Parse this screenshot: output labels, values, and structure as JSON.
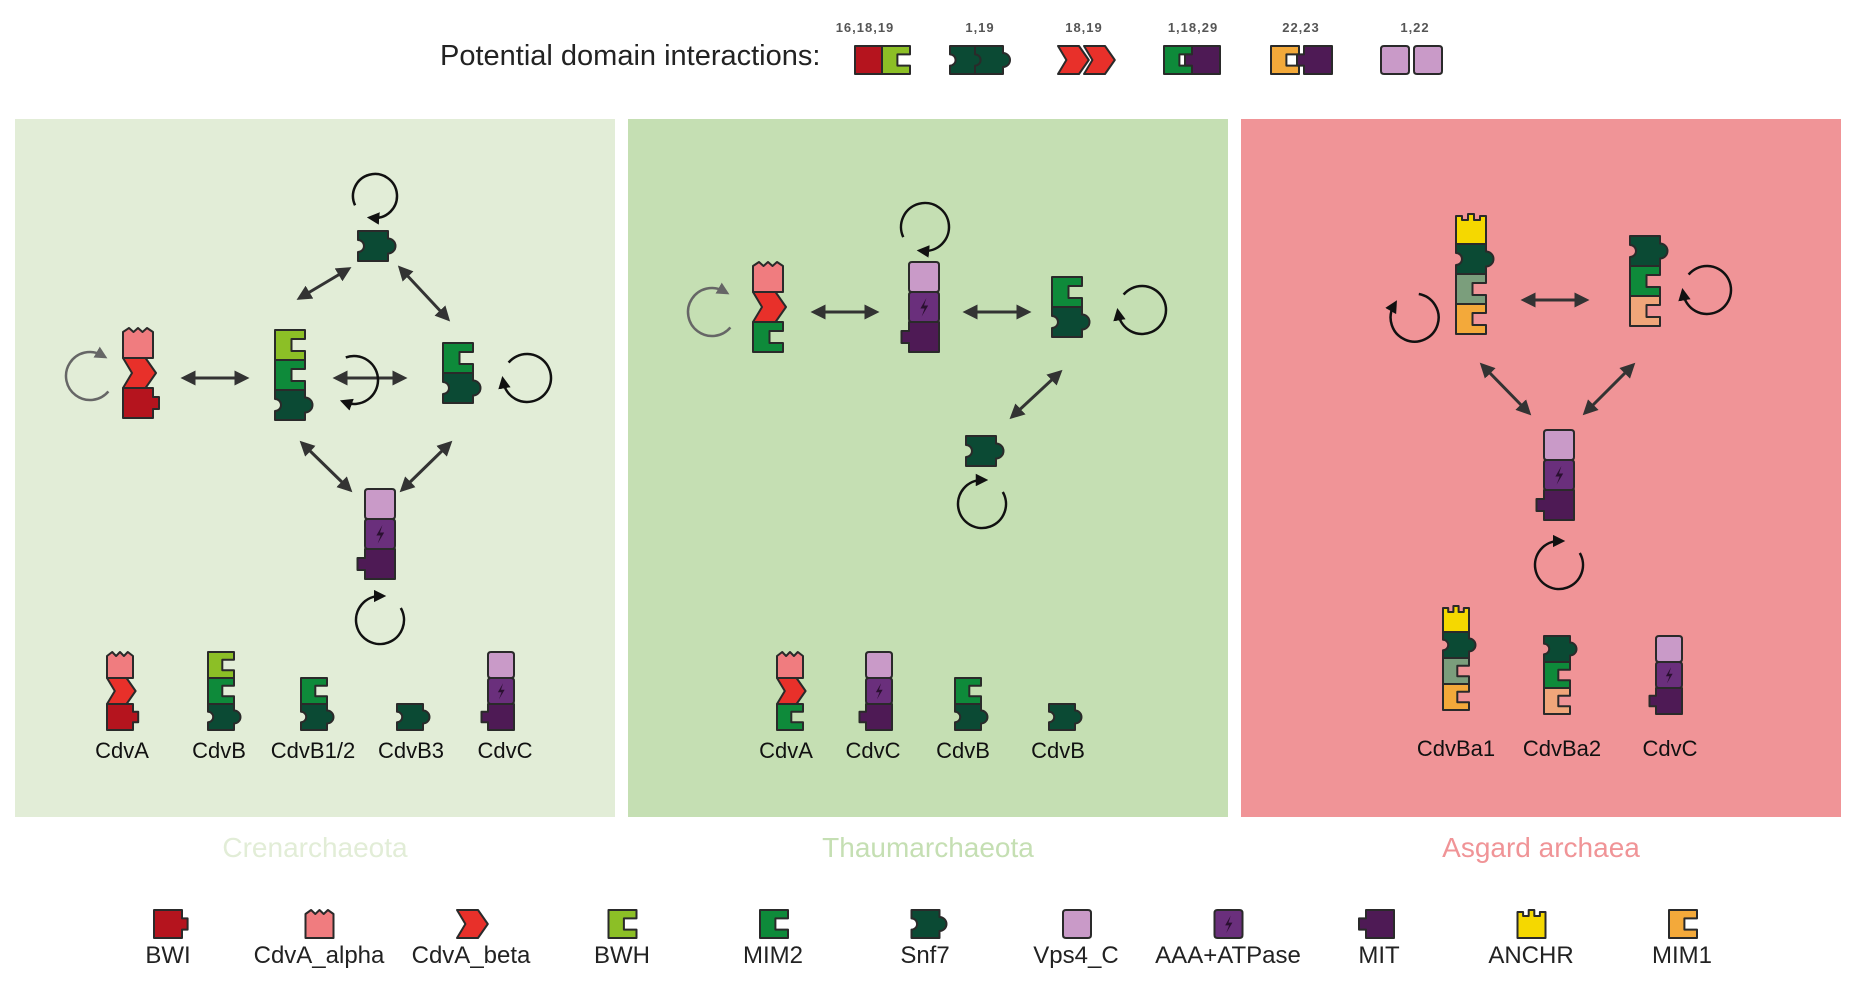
{
  "header": {
    "label": "Potential domain interactions:",
    "references": [
      "16,18,19",
      "1,19",
      "18,19",
      "1,18,29",
      "22,23",
      "1,22"
    ]
  },
  "panels": [
    {
      "name": "Crenarchaeota",
      "bg": "#e2edd7",
      "text_color": "#e2edd7",
      "proteins": [
        "CdvA",
        "CdvB",
        "CdvB1/2",
        "CdvB3",
        "CdvC"
      ]
    },
    {
      "name": "Thaumarchaeota",
      "bg": "#c5dfb3",
      "text_color": "#c5dfb3",
      "proteins": [
        "CdvA",
        "CdvC",
        "CdvB",
        "CdvB"
      ]
    },
    {
      "name": "Asgard archaea",
      "bg": "#f09497",
      "text_color": "#f09497",
      "proteins": [
        "CdvBa1",
        "CdvBa2",
        "CdvC"
      ]
    }
  ],
  "legend": [
    {
      "label": "BWI",
      "color": "#b5141e",
      "icon": "bwi-domain-icon"
    },
    {
      "label": "CdvA_alpha",
      "color": "#f07c7f",
      "icon": "cdva-alpha-domain-icon"
    },
    {
      "label": "CdvA_beta",
      "color": "#e8302a",
      "icon": "cdva-beta-domain-icon"
    },
    {
      "label": "BWH",
      "color": "#8cbf26",
      "icon": "bwh-domain-icon"
    },
    {
      "label": "MIM2",
      "color": "#0e8a3a",
      "icon": "mim2-domain-icon"
    },
    {
      "label": "Snf7",
      "color": "#0b4a34",
      "icon": "snf7-domain-icon"
    },
    {
      "label": "Vps4_C",
      "color": "#c99ac8",
      "icon": "vps4c-domain-icon"
    },
    {
      "label": "AAA+ATPase",
      "color": "#6a2f7c",
      "icon": "aaa-atpase-domain-icon"
    },
    {
      "label": "MIT",
      "color": "#4e1a55",
      "icon": "mit-domain-icon"
    },
    {
      "label": "ANCHR",
      "color": "#f5d800",
      "icon": "anchr-domain-icon"
    },
    {
      "label": "MIM1",
      "color": "#f3a93a",
      "icon": "mim1-domain-icon"
    }
  ],
  "colors": {
    "BWI": "#b5141e",
    "CdvA_alpha": "#f07c7f",
    "CdvA_beta": "#e8302a",
    "BWH": "#8cbf26",
    "MIM2": "#0e8a3a",
    "Snf7": "#0b4a34",
    "Vps4_C": "#c99ac8",
    "AAA": "#6a2f7c",
    "MIT": "#4e1a55",
    "ANCHR": "#f5d800",
    "MIM1": "#f3a93a",
    "MIM1_light": "#f0a67a",
    "Snf7_pale": "#7b9e7c"
  }
}
